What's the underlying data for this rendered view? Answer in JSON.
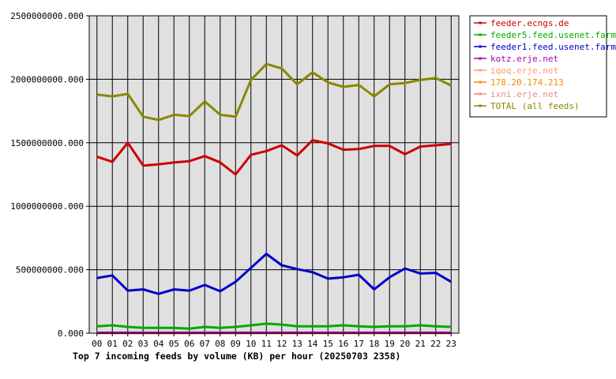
{
  "chart_data": {
    "type": "line",
    "title": "Top 7 incoming feeds by volume (KB) per hour (20250703 2358)",
    "xlabel": "",
    "ylabel": "",
    "ylim": [
      0,
      2500000000
    ],
    "y_ticks": [
      "0.000",
      "500000000.000",
      "1000000000.000",
      "1500000000.000",
      "2000000000.000",
      "2500000000.000"
    ],
    "y_tick_values": [
      0,
      500000000,
      1000000000,
      1500000000,
      2000000000,
      2500000000
    ],
    "categories": [
      "00",
      "01",
      "02",
      "03",
      "04",
      "05",
      "06",
      "07",
      "08",
      "09",
      "10",
      "11",
      "12",
      "13",
      "14",
      "15",
      "16",
      "17",
      "18",
      "19",
      "20",
      "21",
      "22",
      "23"
    ],
    "grid": true,
    "plot_background": "#e0e0e0",
    "legend_position": "right",
    "series": [
      {
        "name": "feeder.ecngs.de",
        "color": "#cc0000",
        "values": [
          1390000000,
          1350000000,
          1500000000,
          1320000000,
          1330000000,
          1345000000,
          1355000000,
          1395000000,
          1345000000,
          1250000000,
          1405000000,
          1435000000,
          1480000000,
          1400000000,
          1520000000,
          1495000000,
          1445000000,
          1450000000,
          1475000000,
          1475000000,
          1410000000,
          1470000000,
          1480000000,
          1490000000
        ]
      },
      {
        "name": "feeder5.feed.usenet.farm",
        "color": "#00aa00",
        "values": [
          55000000,
          62000000,
          50000000,
          42000000,
          42000000,
          42000000,
          36000000,
          50000000,
          42000000,
          50000000,
          62000000,
          75000000,
          68000000,
          55000000,
          55000000,
          55000000,
          62000000,
          55000000,
          50000000,
          55000000,
          55000000,
          62000000,
          55000000,
          50000000
        ]
      },
      {
        "name": "feeder1.feed.usenet.farm",
        "color": "#0000cc",
        "values": [
          435000000,
          455000000,
          335000000,
          345000000,
          310000000,
          345000000,
          335000000,
          380000000,
          330000000,
          405000000,
          515000000,
          625000000,
          535000000,
          505000000,
          480000000,
          430000000,
          440000000,
          460000000,
          345000000,
          440000000,
          510000000,
          470000000,
          475000000,
          405000000
        ]
      },
      {
        "name": "kotz.erje.net",
        "color": "#aa00aa",
        "values": [
          4000000,
          4000000,
          4000000,
          4000000,
          4000000,
          4000000,
          4000000,
          4000000,
          4000000,
          4000000,
          4000000,
          4000000,
          4000000,
          4000000,
          4000000,
          4000000,
          4000000,
          4000000,
          4000000,
          4000000,
          4000000,
          4000000,
          4000000,
          4000000
        ]
      },
      {
        "name": "iqoq.erje.net",
        "color": "#ff9966",
        "values": [
          3000000,
          3000000,
          3000000,
          3000000,
          3000000,
          3000000,
          3000000,
          3000000,
          3000000,
          3000000,
          3000000,
          3000000,
          3000000,
          3000000,
          3000000,
          3000000,
          3000000,
          3000000,
          3000000,
          3000000,
          3000000,
          3000000,
          3000000,
          3000000
        ]
      },
      {
        "name": "178.20.174.213",
        "color": "#ff8800",
        "values": [
          2000000,
          2000000,
          2000000,
          2000000,
          2000000,
          2000000,
          2000000,
          2000000,
          2000000,
          2000000,
          2000000,
          2000000,
          2000000,
          2000000,
          2000000,
          2000000,
          2000000,
          2000000,
          2000000,
          2000000,
          2000000,
          2000000,
          2000000,
          2000000
        ]
      },
      {
        "name": "ixni.erje.net",
        "color": "#ee8888",
        "values": [
          1000000,
          1000000,
          1000000,
          1000000,
          1000000,
          1000000,
          1000000,
          1000000,
          1000000,
          1000000,
          1000000,
          1000000,
          1000000,
          1000000,
          1000000,
          1000000,
          1000000,
          1000000,
          1000000,
          1000000,
          1000000,
          1000000,
          1000000,
          1000000
        ]
      },
      {
        "name": "TOTAL (all feeds)",
        "color": "#888800",
        "values": [
          1880000000,
          1865000000,
          1885000000,
          1705000000,
          1680000000,
          1720000000,
          1710000000,
          1825000000,
          1720000000,
          1705000000,
          1995000000,
          2120000000,
          2085000000,
          1960000000,
          2055000000,
          1975000000,
          1940000000,
          1955000000,
          1865000000,
          1960000000,
          1970000000,
          1995000000,
          2010000000,
          1950000000
        ]
      }
    ]
  }
}
